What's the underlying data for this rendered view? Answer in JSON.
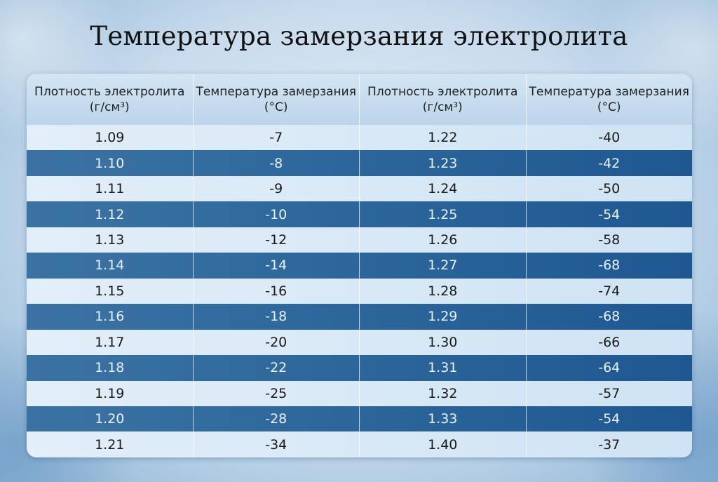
{
  "title": "Температура замерзания электролита",
  "headers": [
    "Плотность электролита (г/см³)",
    "Температура замерзания (°C)",
    "Плотность электролита (г/см³)",
    "Температура замерзания (°C)"
  ],
  "rows": [
    [
      "1.09",
      "-7",
      "1.22",
      "-40"
    ],
    [
      "1.10",
      "-8",
      "1.23",
      "-42"
    ],
    [
      "1.11",
      "-9",
      "1.24",
      "-50"
    ],
    [
      "1.12",
      "-10",
      "1.25",
      "-54"
    ],
    [
      "1.13",
      "-12",
      "1.26",
      "-58"
    ],
    [
      "1.14",
      "-14",
      "1.27",
      "-68"
    ],
    [
      "1.15",
      "-16",
      "1.28",
      "-74"
    ],
    [
      "1.16",
      "-18",
      "1.29",
      "-68"
    ],
    [
      "1.17",
      "-20",
      "1.30",
      "-66"
    ],
    [
      "1.18",
      "-22",
      "1.31",
      "-64"
    ],
    [
      "1.19",
      "-25",
      "1.32",
      "-57"
    ],
    [
      "1.20",
      "-28",
      "1.33",
      "-54"
    ],
    [
      "1.21",
      "-34",
      "1.40",
      "-37"
    ]
  ],
  "colors": {
    "dark_row": "#2a659a",
    "light_row": "#dbeaf6",
    "header": "#c6dcee"
  }
}
